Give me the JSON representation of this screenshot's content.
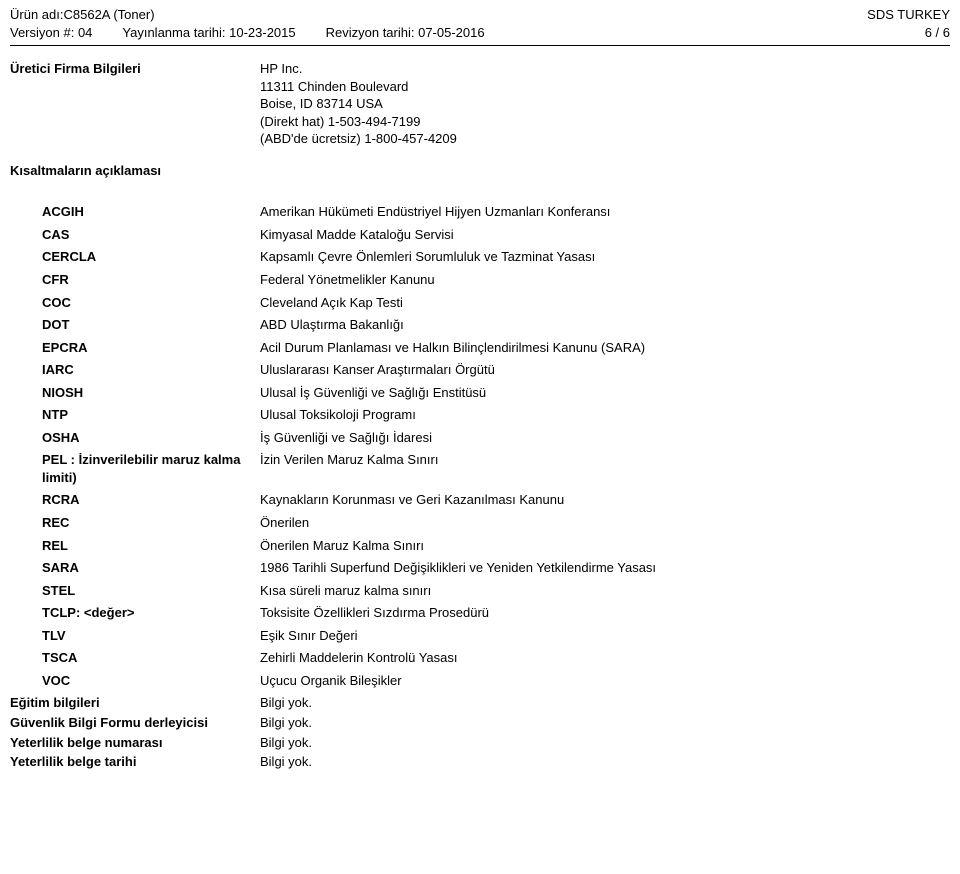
{
  "header": {
    "product_label": "Ürün adı: ",
    "product_value": "C8562A (Toner)",
    "sds_region": "SDS TURKEY",
    "version_label": "Versiyon #: ",
    "version_value": "04",
    "pub_label": "Yayınlanma tarihi: ",
    "pub_value": "10-23-2015",
    "rev_label": "Revizyon tarihi: ",
    "rev_value": "07-05-2016",
    "page": "6 / 6"
  },
  "manufacturer": {
    "label": "Üretici Firma Bilgileri",
    "lines": [
      "HP Inc.",
      "11311 Chinden Boulevard",
      "Boise, ID 83714 USA",
      "(Direkt hat) 1-503-494-7199",
      "(ABD'de ücretsiz) 1-800-457-4209"
    ]
  },
  "abbr_heading": "Kısaltmaların açıklaması",
  "abbr": [
    {
      "term": "ACGIH",
      "def": "Amerikan Hükümeti Endüstriyel Hijyen Uzmanları Konferansı"
    },
    {
      "term": "CAS",
      "def": "Kimyasal Madde Kataloğu Servisi"
    },
    {
      "term": "CERCLA",
      "def": "Kapsamlı Çevre Önlemleri Sorumluluk ve Tazminat Yasası"
    },
    {
      "term": "CFR",
      "def": "Federal Yönetmelikler Kanunu"
    },
    {
      "term": "COC",
      "def": "Cleveland Açık Kap Testi"
    },
    {
      "term": "DOT",
      "def": "ABD Ulaştırma Bakanlığı"
    },
    {
      "term": "EPCRA",
      "def": "Acil Durum Planlaması ve Halkın Bilinçlendirilmesi Kanunu (SARA)"
    },
    {
      "term": "IARC",
      "def": "Uluslararası Kanser Araştırmaları Örgütü"
    },
    {
      "term": "NIOSH",
      "def": "Ulusal İş Güvenliği ve Sağlığı Enstitüsü"
    },
    {
      "term": "NTP",
      "def": "Ulusal Toksikoloji Programı"
    },
    {
      "term": "OSHA",
      "def": "İş Güvenliği ve Sağlığı İdaresi"
    },
    {
      "term": "PEL : İzinverilebilir maruz kalma limiti)",
      "def": "İzin Verilen Maruz Kalma Sınırı"
    },
    {
      "term": "RCRA",
      "def": "Kaynakların Korunması ve Geri Kazanılması Kanunu"
    },
    {
      "term": "REC",
      "def": "Önerilen"
    },
    {
      "term": "REL",
      "def": "Önerilen Maruz Kalma Sınırı"
    },
    {
      "term": "SARA",
      "def": "1986 Tarihli Superfund Değişiklikleri ve Yeniden Yetkilendirme Yasası"
    },
    {
      "term": "STEL",
      "def": "Kısa süreli maruz kalma sınırı"
    },
    {
      "term": "TCLP: <değer>",
      "def": "Toksisite Özellikleri Sızdırma Prosedürü"
    },
    {
      "term": "TLV",
      "def": "Eşik Sınır Değeri"
    },
    {
      "term": "TSCA",
      "def": "Zehirli Maddelerin Kontrolü Yasası"
    },
    {
      "term": "VOC",
      "def": "Uçucu Organik Bileşikler"
    }
  ],
  "footer": [
    {
      "label": "Eğitim bilgileri",
      "value": "Bilgi yok."
    },
    {
      "label": "Güvenlik Bilgi Formu derleyicisi",
      "value": "Bilgi yok."
    },
    {
      "label": "Yeterlilik belge numarası",
      "value": "Bilgi yok."
    },
    {
      "label": "Yeterlilik belge tarihi",
      "value": "Bilgi yok."
    }
  ]
}
